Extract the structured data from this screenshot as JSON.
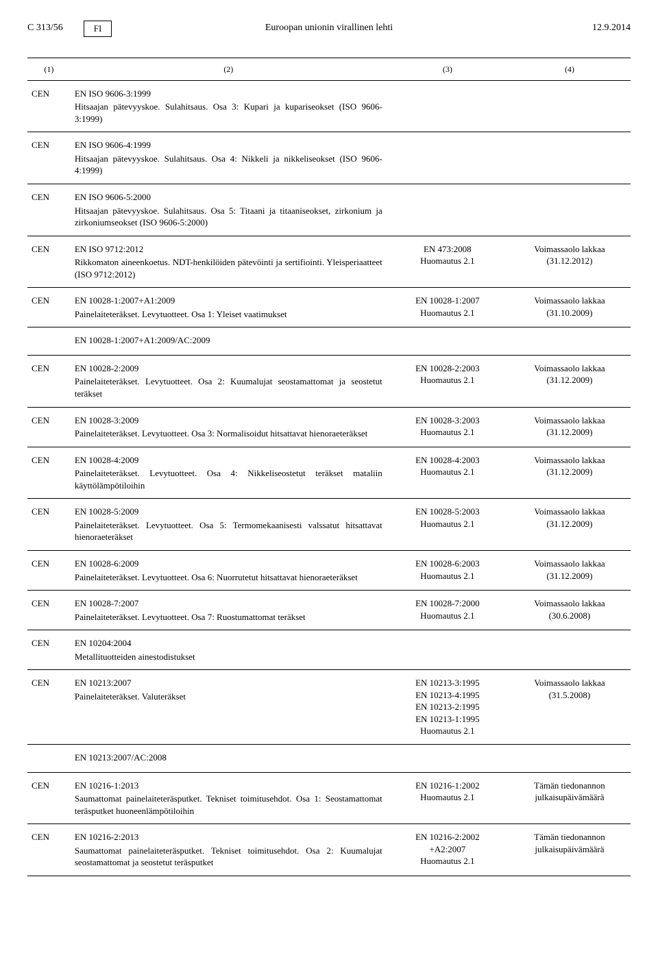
{
  "header": {
    "page_ref": "C 313/56",
    "lang_code": "FI",
    "journal_title": "Euroopan unionin virallinen lehti",
    "date": "12.9.2014"
  },
  "columns": {
    "c1": "(1)",
    "c2": "(2)",
    "c3": "(3)",
    "c4": "(4)"
  },
  "rows": [
    {
      "c1": "CEN",
      "c2_ref": "EN ISO 9606-3:1999",
      "c2_text": "Hitsaajan pätevyyskoe. Sulahitsaus. Osa 3: Kupari ja kupariseokset (ISO 9606-3:1999)",
      "c3": "",
      "c4": ""
    },
    {
      "c1": "CEN",
      "c2_ref": "EN ISO 9606-4:1999",
      "c2_text": "Hitsaajan pätevyyskoe. Sulahitsaus. Osa 4: Nikkeli ja nikkeliseokset (ISO 9606-4:1999)",
      "c3": "",
      "c4": ""
    },
    {
      "c1": "CEN",
      "c2_ref": "EN ISO 9606-5:2000",
      "c2_text": "Hitsaajan pätevyyskoe. Sulahitsaus. Osa 5: Titaani ja titaaniseokset, zirkonium ja zirkoniumseokset (ISO 9606-5:2000)",
      "c3": "",
      "c4": ""
    },
    {
      "c1": "CEN",
      "c2_ref": "EN ISO 9712:2012",
      "c2_text": "Rikkomaton aineenkoetus. NDT-henkilöiden pätevöinti ja sertifiointi. Yleisperiaatteet (ISO 9712:2012)",
      "c3": "EN 473:2008\nHuomautus 2.1",
      "c4": "Voimassaolo lakkaa\n(31.12.2012)"
    },
    {
      "c1": "CEN",
      "c2_ref": "EN 10028-1:2007+A1:2009",
      "c2_text": "Painelaiteteräkset. Levytuotteet. Osa 1: Yleiset vaatimukset",
      "c3": "EN 10028-1:2007\nHuomautus 2.1",
      "c4": "Voimassaolo lakkaa\n(31.10.2009)"
    },
    {
      "c1": "",
      "c2_ref": "EN 10028-1:2007+A1:2009/AC:2009",
      "c2_text": "",
      "c3": "",
      "c4": ""
    },
    {
      "c1": "CEN",
      "c2_ref": "EN 10028-2:2009",
      "c2_text": "Painelaiteteräkset. Levytuotteet. Osa 2: Kuumalujat seostamattomat ja seostetut teräkset",
      "c3": "EN 10028-2:2003\nHuomautus 2.1",
      "c4": "Voimassaolo lakkaa\n(31.12.2009)"
    },
    {
      "c1": "CEN",
      "c2_ref": "EN 10028-3:2009",
      "c2_text": "Painelaiteteräkset. Levytuotteet. Osa 3: Normalisoidut hitsattavat hienoraeteräkset",
      "c3": "EN 10028-3:2003\nHuomautus 2.1",
      "c4": "Voimassaolo lakkaa\n(31.12.2009)"
    },
    {
      "c1": "CEN",
      "c2_ref": "EN 10028-4:2009",
      "c2_text": "Painelaiteteräkset. Levytuotteet. Osa 4: Nikkeliseostetut teräkset mataliin käyttölämpötiloihin",
      "c3": "EN 10028-4:2003\nHuomautus 2.1",
      "c4": "Voimassaolo lakkaa\n(31.12.2009)"
    },
    {
      "c1": "CEN",
      "c2_ref": "EN 10028-5:2009",
      "c2_text": "Painelaiteteräkset. Levytuotteet. Osa 5: Termomekaanisesti valssatut hitsattavat hienoraeteräkset",
      "c3": "EN 10028-5:2003\nHuomautus 2.1",
      "c4": "Voimassaolo lakkaa\n(31.12.2009)"
    },
    {
      "c1": "CEN",
      "c2_ref": "EN 10028-6:2009",
      "c2_text": "Painelaiteteräkset. Levytuotteet. Osa 6: Nuorrutetut hitsattavat hienoraeteräkset",
      "c3": "EN 10028-6:2003\nHuomautus 2.1",
      "c4": "Voimassaolo lakkaa\n(31.12.2009)"
    },
    {
      "c1": "CEN",
      "c2_ref": "EN 10028-7:2007",
      "c2_text": "Painelaiteteräkset. Levytuotteet. Osa 7: Ruostumattomat teräkset",
      "c3": "EN 10028-7:2000\nHuomautus 2.1",
      "c4": "Voimassaolo lakkaa\n(30.6.2008)"
    },
    {
      "c1": "CEN",
      "c2_ref": "EN 10204:2004",
      "c2_text": "Metallituotteiden ainestodistukset",
      "c3": "",
      "c4": ""
    },
    {
      "c1": "CEN",
      "c2_ref": "EN 10213:2007",
      "c2_text": "Painelaiteteräkset. Valuteräkset",
      "c3": "EN 10213-3:1995\nEN 10213-4:1995\nEN 10213-2:1995\nEN 10213-1:1995\nHuomautus 2.1",
      "c4": "Voimassaolo lakkaa\n(31.5.2008)"
    },
    {
      "c1": "",
      "c2_ref": "EN 10213:2007/AC:2008",
      "c2_text": "",
      "c3": "",
      "c4": ""
    },
    {
      "c1": "CEN",
      "c2_ref": "EN 10216-1:2013",
      "c2_text": "Saumattomat painelaiteteräsputket. Tekniset toimitusehdot. Osa 1: Seostamattomat teräsputket huoneenlämpötiloihin",
      "c3": "EN 10216-1:2002\nHuomautus 2.1",
      "c4": "Tämän tiedonannon\njulkaisupäivämäärä"
    },
    {
      "c1": "CEN",
      "c2_ref": "EN 10216-2:2013",
      "c2_text": "Saumattomat painelaiteteräsputket. Tekniset toimitusehdot. Osa 2: Kuumalujat seostamattomat ja seostetut teräsputket",
      "c3": "EN 10216-2:2002\n+A2:2007\nHuomautus 2.1",
      "c4": "Tämän tiedonannon\njulkaisupäivämäärä"
    }
  ]
}
